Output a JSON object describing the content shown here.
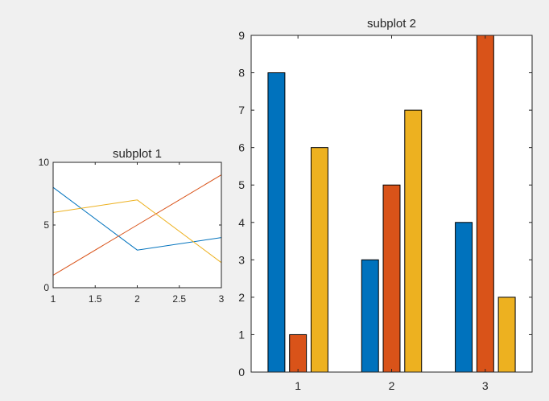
{
  "chart_data": [
    {
      "type": "line",
      "title": "subplot 1",
      "x": [
        1,
        2,
        3
      ],
      "series": [
        {
          "color": "#0072BD",
          "values": [
            8,
            3,
            4
          ]
        },
        {
          "color": "#D95319",
          "values": [
            1,
            5,
            9
          ]
        },
        {
          "color": "#EDB120",
          "values": [
            6,
            7,
            2
          ]
        }
      ],
      "xlim": [
        1,
        3
      ],
      "ylim": [
        0,
        10
      ],
      "xticks": [
        "1",
        "1.5",
        "2",
        "2.5",
        "3"
      ],
      "yticks": [
        "0",
        "5",
        "10"
      ],
      "grid": false,
      "xlabel": "",
      "ylabel": ""
    },
    {
      "type": "bar",
      "title": "subplot 2",
      "categories": [
        "1",
        "2",
        "3"
      ],
      "series": [
        {
          "color": "#0072BD",
          "values": [
            8,
            3,
            4
          ]
        },
        {
          "color": "#D95319",
          "values": [
            1,
            5,
            9
          ]
        },
        {
          "color": "#EDB120",
          "values": [
            6,
            7,
            2
          ]
        }
      ],
      "ylim": [
        0,
        9
      ],
      "yticks": [
        "0",
        "1",
        "2",
        "3",
        "4",
        "5",
        "6",
        "7",
        "8",
        "9"
      ],
      "grid": false,
      "xlabel": "",
      "ylabel": ""
    }
  ]
}
